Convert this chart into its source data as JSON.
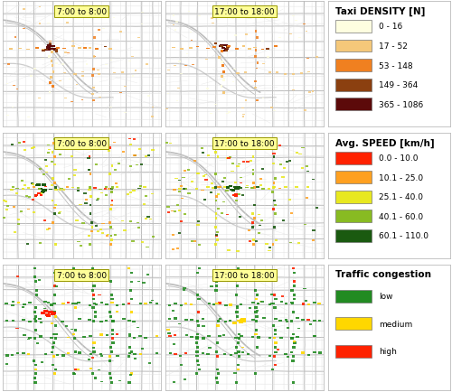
{
  "row_labels": [
    {
      "left": "7:00 to 8:00",
      "right": "17:00 to 18:00"
    },
    {
      "left": "7:00 to 8:00",
      "right": "17:00 to 18:00"
    },
    {
      "left": "7:00 to 8:00",
      "right": "17:00 to 18:00"
    }
  ],
  "legend1": {
    "title": "Taxi DENSITY [N]",
    "items": [
      {
        "label": "0 - 16",
        "color": "#FEFEE0"
      },
      {
        "label": "17 - 52",
        "color": "#F5C87A"
      },
      {
        "label": "53 - 148",
        "color": "#F08020"
      },
      {
        "label": "149 - 364",
        "color": "#8B4010"
      },
      {
        "label": "365 - 1086",
        "color": "#5C0A0A"
      }
    ]
  },
  "legend2": {
    "title": "Avg. SPEED [km/h]",
    "items": [
      {
        "label": "0.0 - 10.0",
        "color": "#FF2200"
      },
      {
        "label": "10.1 - 25.0",
        "color": "#FFA020"
      },
      {
        "label": "25.1 - 40.0",
        "color": "#E8E820"
      },
      {
        "label": "40.1 - 60.0",
        "color": "#88BB22"
      },
      {
        "label": "60.1 - 110.0",
        "color": "#1A5A10"
      }
    ]
  },
  "legend3": {
    "title": "Traffic congestion",
    "items": [
      {
        "label": "low",
        "color": "#228B22"
      },
      {
        "label": "medium",
        "color": "#FFD700"
      },
      {
        "label": "high",
        "color": "#FF2200"
      }
    ]
  },
  "map_bg": "#FFFFFF",
  "road_color_major": "#CCCCCC",
  "road_color_minor": "#E0E0E0",
  "border_color": "#AAAAAA",
  "label_bg": "#FFFF99",
  "label_border": "#999900",
  "label_fontsize": 6.5,
  "legend_title_fontsize": 7.5,
  "legend_item_fontsize": 6.5
}
